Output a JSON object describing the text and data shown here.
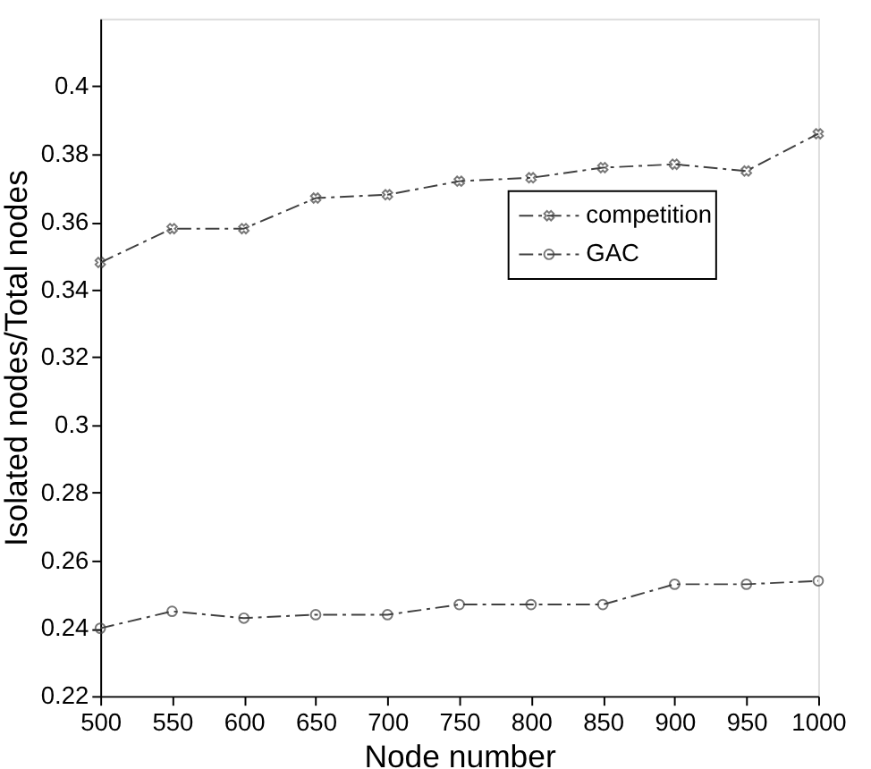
{
  "chart_data": {
    "type": "line",
    "xlabel": "Node number",
    "ylabel": "Isolated nodes/Total nodes",
    "x": [
      500,
      550,
      600,
      650,
      700,
      750,
      800,
      850,
      900,
      950,
      1000
    ],
    "series": [
      {
        "name": "competition",
        "color": "#404040",
        "marker": "cross",
        "values": [
          0.348,
          0.358,
          0.358,
          0.367,
          0.368,
          0.372,
          0.373,
          0.376,
          0.377,
          0.375,
          0.386
        ]
      },
      {
        "name": "GAC",
        "color": "#404040",
        "marker": "circle",
        "values": [
          0.24,
          0.245,
          0.243,
          0.244,
          0.244,
          0.247,
          0.247,
          0.247,
          0.253,
          0.253,
          0.254
        ]
      }
    ],
    "xlim": [
      500,
      1000
    ],
    "xticks": [
      500,
      550,
      600,
      650,
      700,
      750,
      800,
      850,
      900,
      950,
      1000
    ],
    "ylim": [
      0.22,
      0.42
    ],
    "yticks": [
      0.22,
      0.24,
      0.26,
      0.28,
      0.3,
      0.32,
      0.34,
      0.36,
      0.38,
      0.4
    ],
    "grid": false,
    "legend": "right",
    "line_style": "dashed"
  }
}
